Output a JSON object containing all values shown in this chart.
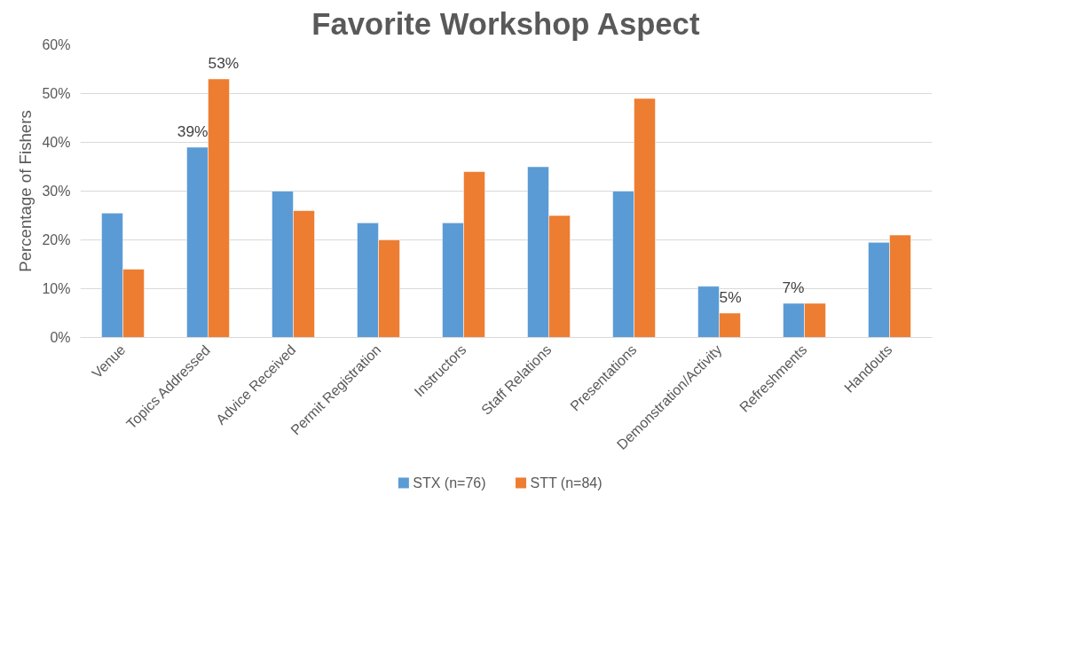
{
  "chart_data": {
    "type": "bar",
    "title": "Favorite Workshop Aspect",
    "ylabel": "Percentage of Fishers",
    "categories": [
      "Venue",
      "Topics Addressed",
      "Advice Received",
      "Permit Registration",
      "Instructors",
      "Staff Relations",
      "Presentations",
      "Demonstration/Activity",
      "Refreshments",
      "Handouts"
    ],
    "series": [
      {
        "name": "STX (n=76)",
        "color": "#5b9bd5",
        "values": [
          25.5,
          39,
          30,
          23.5,
          23.5,
          35,
          30,
          10.5,
          7,
          19.5
        ],
        "value_labels": [
          null,
          "39%",
          null,
          null,
          null,
          null,
          null,
          null,
          "7%",
          null
        ]
      },
      {
        "name": "STT (n=84)",
        "color": "#ed7d31",
        "values": [
          14,
          53,
          26,
          20,
          34,
          25,
          49,
          5,
          7,
          21
        ],
        "value_labels": [
          null,
          "53%",
          null,
          null,
          null,
          null,
          null,
          "5%",
          null,
          null
        ]
      }
    ],
    "ylim": [
      0,
      60
    ],
    "yticks": [
      {
        "value": 0,
        "label": "0%"
      },
      {
        "value": 10,
        "label": "10%"
      },
      {
        "value": 20,
        "label": "20%"
      },
      {
        "value": 30,
        "label": "30%"
      },
      {
        "value": 40,
        "label": "40%"
      },
      {
        "value": 50,
        "label": "50%"
      },
      {
        "value": 60,
        "label": "60%"
      }
    ],
    "grid": "y",
    "legend": "bottom"
  }
}
